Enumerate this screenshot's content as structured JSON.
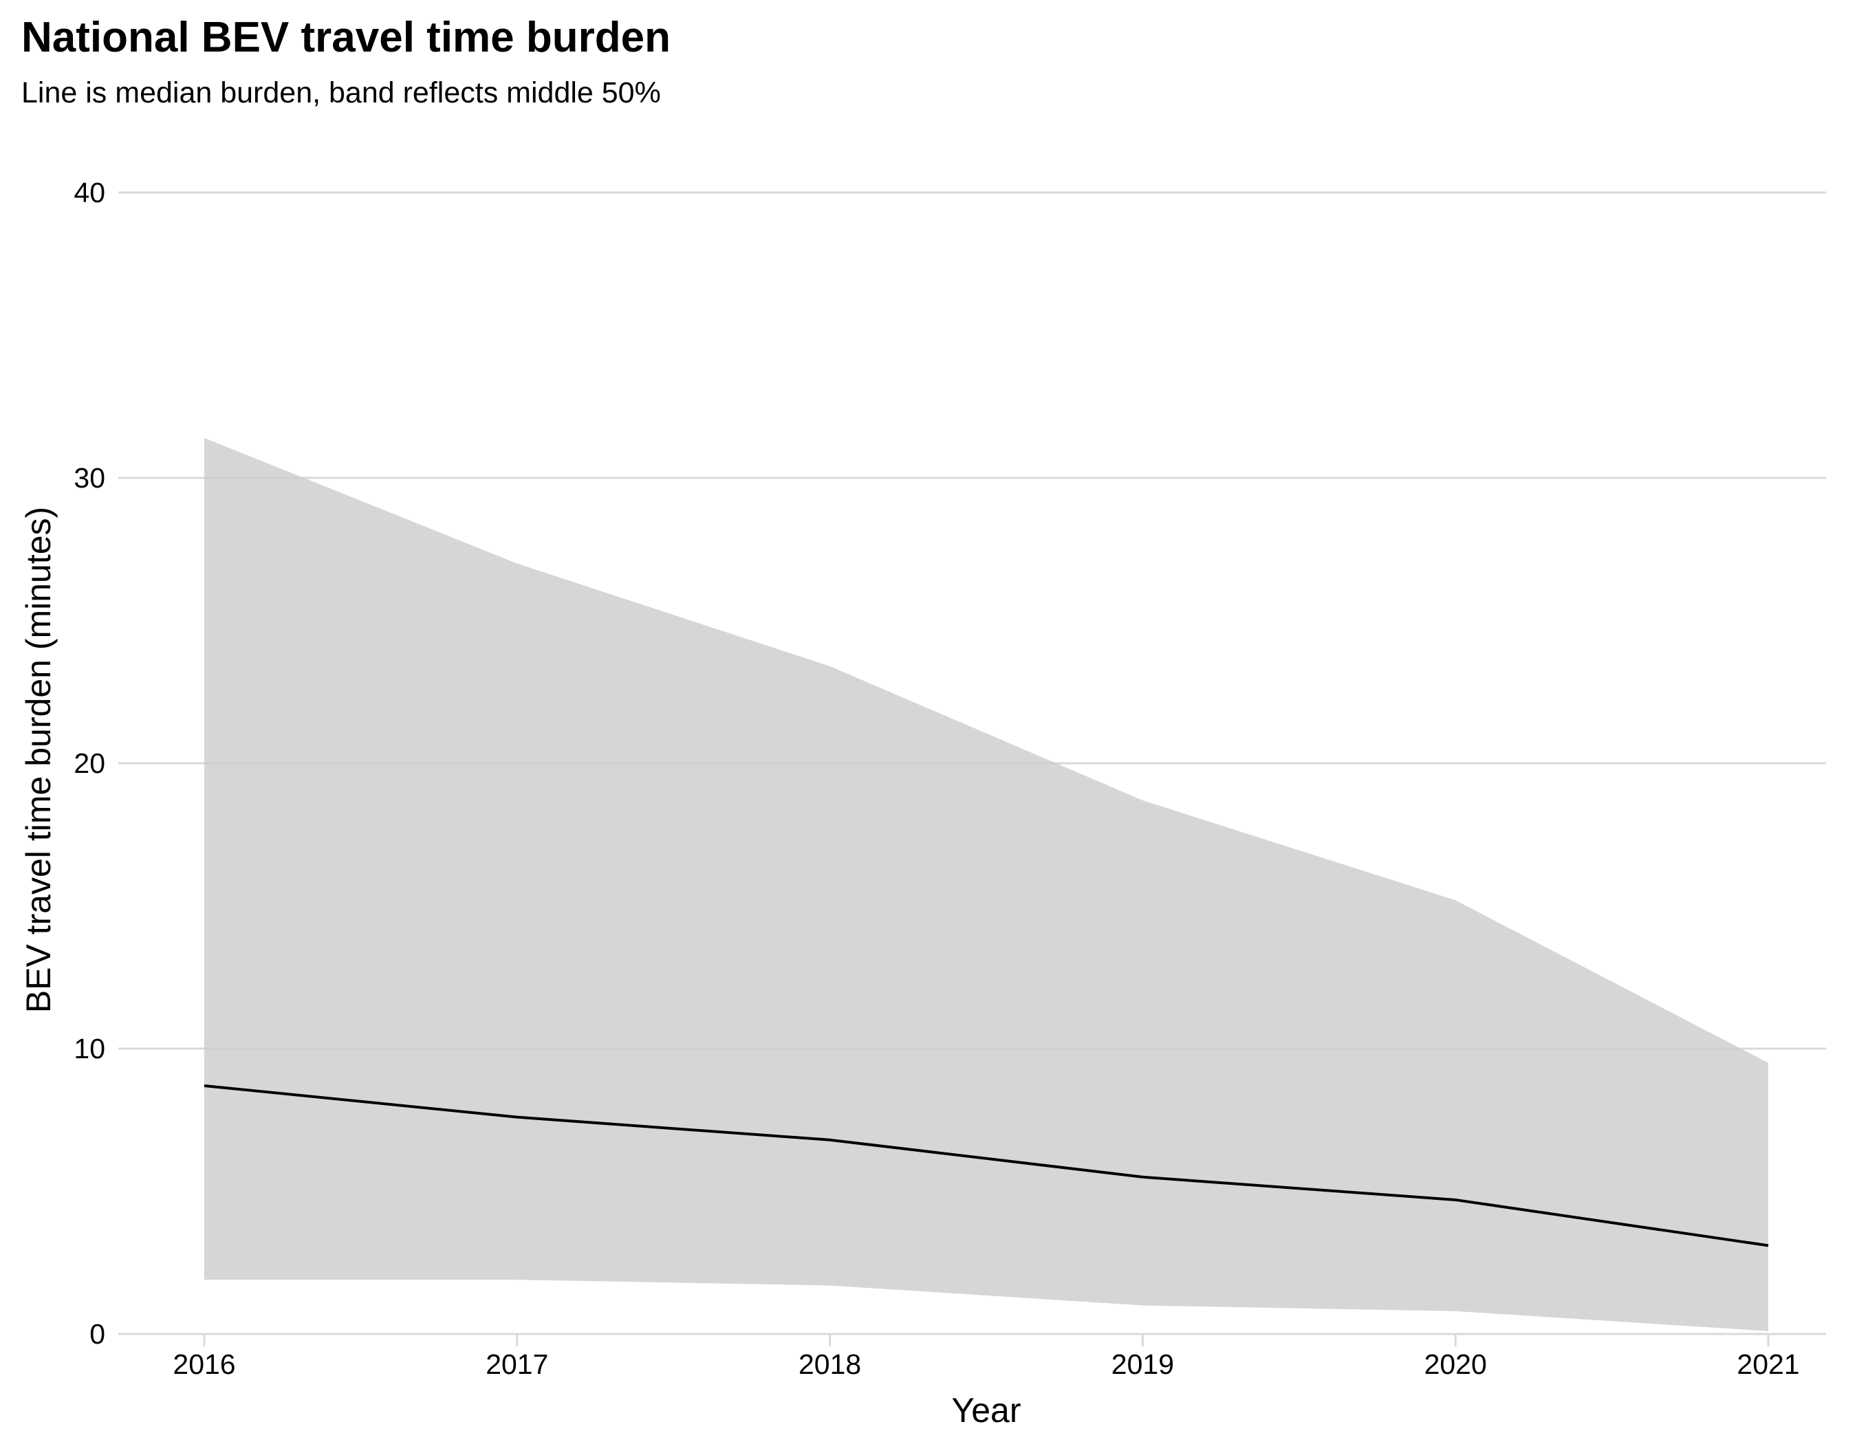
{
  "chart_data": {
    "type": "area",
    "title": "National BEV travel time burden",
    "subtitle": "Line is median burden, band reflects middle 50%",
    "xlabel": "Year",
    "ylabel": "BEV travel time burden (minutes)",
    "x": [
      2016,
      2017,
      2018,
      2019,
      2020,
      2021
    ],
    "ylim": [
      0,
      40
    ],
    "yticks": [
      0,
      10,
      20,
      30,
      40
    ],
    "grid": "horizontal",
    "series": [
      {
        "kind": "band",
        "lower": [
          1.9,
          1.9,
          1.7,
          1.0,
          0.8,
          0.1
        ],
        "upper": [
          31.4,
          27.0,
          23.4,
          18.7,
          15.2,
          9.5
        ]
      },
      {
        "kind": "line",
        "values": [
          8.7,
          7.6,
          6.8,
          5.5,
          4.7,
          3.1
        ]
      }
    ],
    "colors": {
      "band": "#cccccc",
      "line": "#000000",
      "grid": "#d9d9d9"
    }
  }
}
